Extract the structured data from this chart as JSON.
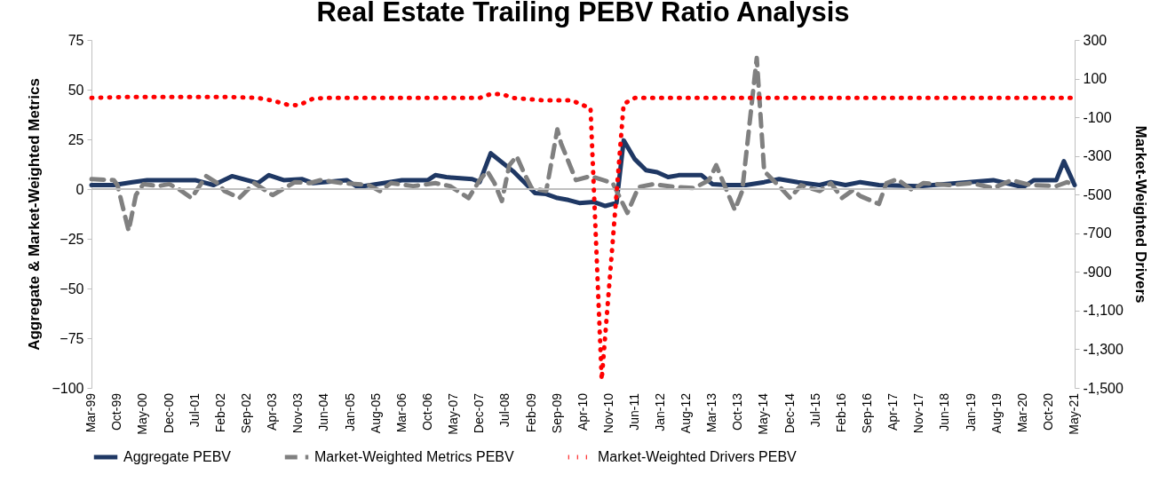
{
  "chart_data": {
    "type": "line",
    "title": "Real Estate Trailing PEBV Ratio Analysis",
    "ylabel": "Aggregate & Market-Weighted Metrics",
    "y2label": "Market-Weighted Drivers",
    "xlim": [
      "1999-03",
      "2021-05"
    ],
    "xticks": [
      {
        "value": "1999-03",
        "label": "Mar-99"
      },
      {
        "value": "1999-10",
        "label": "Oct-99"
      },
      {
        "value": "2000-05",
        "label": "May-00"
      },
      {
        "value": "2000-12",
        "label": "Dec-00"
      },
      {
        "value": "2001-07",
        "label": "Jul-01"
      },
      {
        "value": "2002-02",
        "label": "Feb-02"
      },
      {
        "value": "2002-09",
        "label": "Sep-02"
      },
      {
        "value": "2003-04",
        "label": "Apr-03"
      },
      {
        "value": "2003-11",
        "label": "Nov-03"
      },
      {
        "value": "2004-06",
        "label": "Jun-04"
      },
      {
        "value": "2005-01",
        "label": "Jan-05"
      },
      {
        "value": "2005-08",
        "label": "Aug-05"
      },
      {
        "value": "2006-03",
        "label": "Mar-06"
      },
      {
        "value": "2006-10",
        "label": "Oct-06"
      },
      {
        "value": "2007-05",
        "label": "May-07"
      },
      {
        "value": "2007-12",
        "label": "Dec-07"
      },
      {
        "value": "2008-07",
        "label": "Jul-08"
      },
      {
        "value": "2009-02",
        "label": "Feb-09"
      },
      {
        "value": "2009-09",
        "label": "Sep-09"
      },
      {
        "value": "2010-04",
        "label": "Apr-10"
      },
      {
        "value": "2010-11",
        "label": "Nov-10"
      },
      {
        "value": "2011-06",
        "label": "Jun-11"
      },
      {
        "value": "2012-01",
        "label": "Jan-12"
      },
      {
        "value": "2012-08",
        "label": "Aug-12"
      },
      {
        "value": "2013-03",
        "label": "Mar-13"
      },
      {
        "value": "2013-10",
        "label": "Oct-13"
      },
      {
        "value": "2014-05",
        "label": "May-14"
      },
      {
        "value": "2014-12",
        "label": "Dec-14"
      },
      {
        "value": "2015-07",
        "label": "Jul-15"
      },
      {
        "value": "2016-02",
        "label": "Feb-16"
      },
      {
        "value": "2016-09",
        "label": "Sep-16"
      },
      {
        "value": "2017-04",
        "label": "Apr-17"
      },
      {
        "value": "2017-11",
        "label": "Nov-17"
      },
      {
        "value": "2018-06",
        "label": "Jun-18"
      },
      {
        "value": "2019-01",
        "label": "Jan-19"
      },
      {
        "value": "2019-08",
        "label": "Aug-19"
      },
      {
        "value": "2020-03",
        "label": "Mar-20"
      },
      {
        "value": "2020-10",
        "label": "Oct-20"
      },
      {
        "value": "2021-05",
        "label": "May-21"
      }
    ],
    "ylim": [
      -100,
      75
    ],
    "yticks": [
      -100,
      -75,
      -50,
      -25,
      0,
      25,
      50,
      75
    ],
    "y2lim": [
      -1500,
      300
    ],
    "y2ticks": [
      {
        "value": -1500,
        "label": "-1,500"
      },
      {
        "value": -1300,
        "label": "-1,300"
      },
      {
        "value": -1100,
        "label": "-1,100"
      },
      -900,
      -700,
      -500,
      -300,
      -100,
      100,
      300
    ],
    "grid": false,
    "legend": "bottom",
    "ref_lines": [
      {
        "axis": "y",
        "value": 0,
        "color": "#bfbfbf"
      }
    ],
    "series": [
      {
        "name": "Aggregate PEBV",
        "color": "#1f3864",
        "line_style": "solid",
        "x": [
          "1999-03",
          "1999-09",
          "2000-02",
          "2000-06",
          "2001-07",
          "2001-12",
          "2002-05",
          "2002-12",
          "2003-03",
          "2003-07",
          "2003-12",
          "2004-03",
          "2004-12",
          "2005-03",
          "2005-10",
          "2006-03",
          "2006-10",
          "2006-12",
          "2007-03",
          "2007-10",
          "2007-12",
          "2008-03",
          "2008-09",
          "2009-03",
          "2009-06",
          "2009-09",
          "2009-12",
          "2010-03",
          "2010-07",
          "2010-10",
          "2011-01",
          "2011-03",
          "2011-06",
          "2011-09",
          "2011-12",
          "2012-03",
          "2012-06",
          "2012-12",
          "2013-03",
          "2013-07",
          "2013-12",
          "2014-05",
          "2014-09",
          "2015-02",
          "2015-08",
          "2015-11",
          "2016-03",
          "2016-07",
          "2016-12",
          "2017-11",
          "2019-07",
          "2020-03",
          "2020-06",
          "2020-12",
          "2021-02",
          "2021-05"
        ],
        "values": [
          2,
          2,
          3.5,
          4.5,
          4.5,
          2,
          6.5,
          3,
          7,
          4.5,
          5,
          3,
          4.5,
          1,
          3,
          4.5,
          4.5,
          7,
          6,
          5,
          3.5,
          18,
          9,
          -2,
          -2.5,
          -4.5,
          -5.5,
          -7,
          -6.5,
          -8.5,
          -7,
          24.5,
          15,
          9.5,
          8.5,
          6,
          7,
          7,
          2.5,
          2,
          2,
          3.5,
          5,
          3.5,
          2,
          3.5,
          2,
          3.5,
          2,
          1.5,
          4.5,
          1,
          4.5,
          4.5,
          14,
          2
        ]
      },
      {
        "name": "Market-Weighted Metrics PEBV",
        "color": "#808080",
        "line_style": "dashed",
        "x": [
          "1999-03",
          "1999-09",
          "1999-10",
          "2000-01",
          "2000-03",
          "2000-05",
          "2000-09",
          "2000-12",
          "2001-03",
          "2001-06",
          "2001-10",
          "2002-01",
          "2002-03",
          "2002-07",
          "2002-11",
          "2003-04",
          "2003-10",
          "2004-02",
          "2004-05",
          "2004-11",
          "2005-06",
          "2005-09",
          "2005-12",
          "2006-06",
          "2006-12",
          "2007-04",
          "2007-09",
          "2007-12",
          "2008-02",
          "2008-04",
          "2008-06",
          "2008-08",
          "2008-10",
          "2008-12",
          "2009-02",
          "2009-06",
          "2009-09",
          "2009-10",
          "2010-02",
          "2010-06",
          "2010-12",
          "2011-04",
          "2011-07",
          "2011-11",
          "2012-05",
          "2012-10",
          "2013-02",
          "2013-04",
          "2013-09",
          "2013-11",
          "2014-03",
          "2014-05",
          "2014-09",
          "2014-12",
          "2015-03",
          "2015-08",
          "2015-11",
          "2016-02",
          "2016-05",
          "2016-07",
          "2016-12",
          "2017-02",
          "2017-05",
          "2017-09",
          "2017-12",
          "2018-07",
          "2019-01",
          "2019-07",
          "2019-12",
          "2020-05",
          "2020-12",
          "2021-03",
          "2021-05"
        ],
        "values": [
          5,
          4.5,
          2,
          -21,
          -3,
          2.5,
          1.5,
          2.5,
          -0.5,
          -4.5,
          6.5,
          3,
          -1,
          -4.5,
          3,
          -3,
          3.5,
          3,
          4.5,
          3,
          2,
          -1,
          3,
          1.5,
          3,
          1.5,
          -4.5,
          4.5,
          9,
          3,
          -6,
          12,
          16.5,
          8,
          0.5,
          -1,
          30,
          23,
          4.5,
          6.5,
          3,
          -12,
          1,
          2.5,
          1,
          0.5,
          4.5,
          12,
          -10.5,
          -1,
          66,
          9,
          1.5,
          -4.5,
          2,
          -1,
          3,
          -4.5,
          -0.5,
          -3.5,
          -7.5,
          3,
          5,
          -0.5,
          3,
          2,
          3,
          0.5,
          4.5,
          2,
          1.5,
          3.5,
          1.5
        ]
      },
      {
        "name": "Market-Weighted Drivers PEBV",
        "color": "#ff0000",
        "line_style": "dotted",
        "axis": "y2",
        "x": [
          "1999-03",
          "1999-12",
          "2002-04",
          "2002-12",
          "2003-04",
          "2003-08",
          "2003-11",
          "2004-03",
          "2004-07",
          "2007-12",
          "2008-03",
          "2008-06",
          "2008-09",
          "2009-05",
          "2010-01",
          "2010-03",
          "2010-06",
          "2010-09",
          "2011-03",
          "2011-06",
          "2021-05"
        ],
        "values": [
          0,
          5,
          5,
          0,
          -14,
          -35,
          -38,
          -3,
          0,
          0,
          20,
          20,
          0,
          -12,
          -12,
          -31,
          -52,
          -1458,
          -31,
          0,
          0
        ]
      }
    ]
  }
}
